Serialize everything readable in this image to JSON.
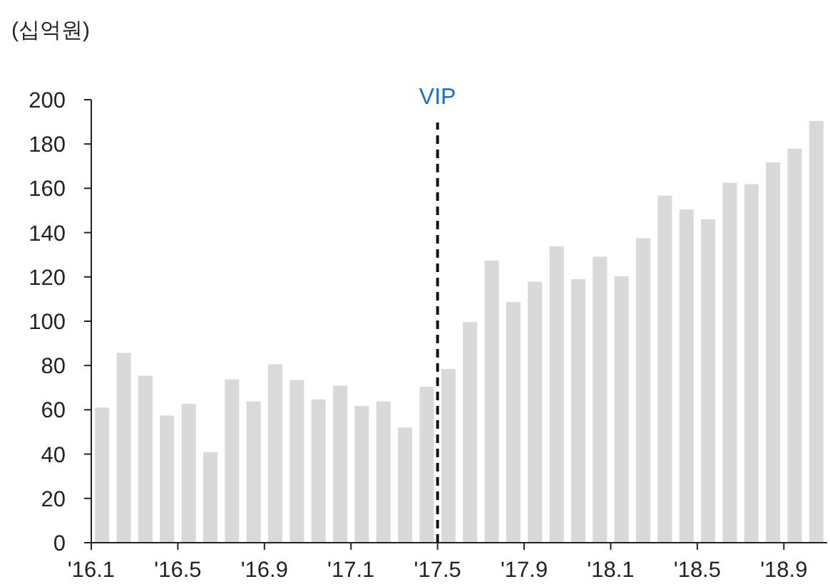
{
  "chart_data": {
    "type": "bar",
    "ylabel": "(십억원)",
    "categories": [
      "'16.1",
      null,
      null,
      null,
      "'16.5",
      null,
      null,
      null,
      "'16.9",
      null,
      null,
      null,
      "'17.1",
      null,
      null,
      null,
      "'17.5",
      null,
      null,
      null,
      "'17.9",
      null,
      null,
      null,
      "'18.1",
      null,
      null,
      null,
      "'18.5",
      null,
      null,
      null,
      "'18.9",
      null
    ],
    "values": [
      61,
      85.7,
      75.4,
      57.4,
      62.7,
      40.9,
      73.7,
      63.8,
      80.5,
      73.4,
      64.7,
      70.9,
      61.7,
      63.8,
      52,
      70.4,
      78.4,
      99.6,
      127.4,
      108.6,
      117.8,
      133.8,
      119,
      129.1,
      120.3,
      137.5,
      156.7,
      150.5,
      146,
      162.5,
      161.9,
      171.7,
      177.9,
      190.4
    ],
    "color": "#d9d9d9",
    "ylim": [
      0,
      200
    ],
    "yticks": [
      0,
      20,
      40,
      60,
      80,
      100,
      120,
      140,
      160,
      180,
      200
    ],
    "ref_lines": [
      {
        "axis": "x",
        "value": "'17.5",
        "label": "VIP",
        "color": "#111111",
        "line_style": "dashed"
      }
    ]
  }
}
